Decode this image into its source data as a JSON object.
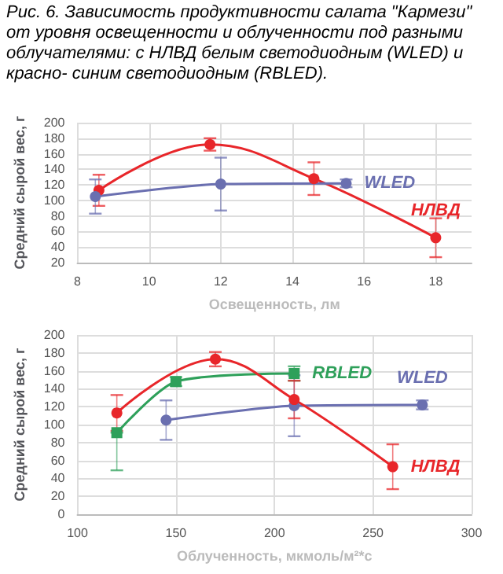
{
  "chart_data": [
    {
      "type": "line",
      "title": "Рис. 6. Зависимость продуктивности салата \"Кармези\" от уровня освещенности и облученности под разными облучателями: с НЛВД белым светодиодным (WLED) и красно- синим светодиодным (RBLED).",
      "xlabel": "Освещенность, лм",
      "ylabel": "Средний сырой вес, г",
      "xlim": [
        8,
        19
      ],
      "xticks": [
        8,
        10,
        12,
        14,
        16,
        18
      ],
      "ylim": [
        20,
        200
      ],
      "yticks": [
        20,
        40,
        60,
        80,
        100,
        120,
        140,
        160,
        180,
        200
      ],
      "grid": true,
      "legend": false,
      "series": [
        {
          "name": "НЛВД",
          "color": "#e8262a",
          "marker": "circle",
          "x": [
            8.6,
            11.7,
            14.6,
            18
          ],
          "values": [
            113,
            172,
            128,
            52
          ],
          "errors": [
            20,
            8,
            21,
            25
          ]
        },
        {
          "name": "WLED",
          "color": "#6a6fb0",
          "marker": "circle",
          "x": [
            8.5,
            12,
            15.5
          ],
          "values": [
            105,
            121,
            122
          ],
          "errors": [
            22,
            34,
            5
          ]
        }
      ]
    },
    {
      "type": "line",
      "xlabel": "Облученность, мкмоль/м²*с",
      "ylabel": "Средний сырой вес, г",
      "xlim": [
        100,
        300
      ],
      "xticks": [
        100,
        150,
        200,
        250,
        300
      ],
      "ylim": [
        0,
        200
      ],
      "yticks": [
        0,
        20,
        40,
        60,
        80,
        100,
        120,
        140,
        160,
        180,
        200
      ],
      "grid": true,
      "legend": false,
      "series": [
        {
          "name": "RBLED",
          "color": "#2ea05a",
          "marker": "square",
          "x": [
            120,
            150,
            210
          ],
          "values": [
            91,
            148,
            157
          ],
          "errors": [
            [
              49,
              91
            ],
            5,
            8
          ]
        },
        {
          "name": "WLED",
          "color": "#6a6fb0",
          "marker": "circle",
          "x": [
            145,
            210,
            275
          ],
          "values": [
            105,
            121,
            122
          ],
          "errors": [
            22,
            34,
            5
          ]
        },
        {
          "name": "НЛВД",
          "color": "#e8262a",
          "marker": "circle",
          "x": [
            120,
            170,
            210,
            260
          ],
          "values": [
            113,
            173,
            128,
            53
          ],
          "errors": [
            20,
            8,
            21,
            25
          ]
        }
      ]
    }
  ]
}
